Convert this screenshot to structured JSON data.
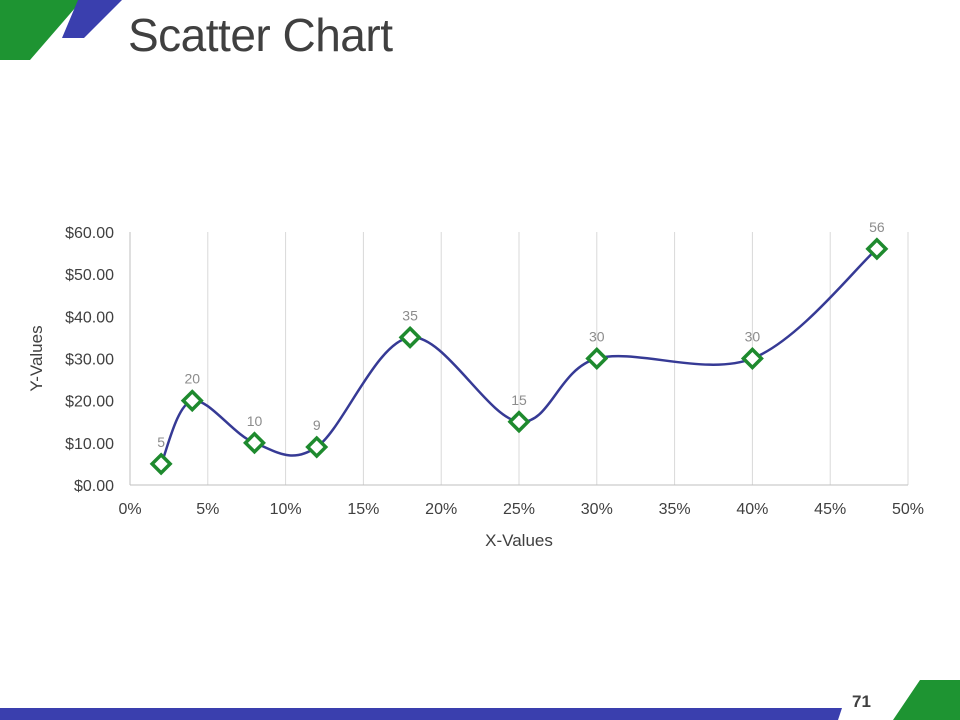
{
  "slide": {
    "title": "Scatter Chart",
    "page_number": "71"
  },
  "colors": {
    "green": "#1e9432",
    "blue": "#3a3fae",
    "line": "#363a95",
    "marker": "#1e8a2e",
    "grid": "#d9d9d9"
  },
  "chart_data": {
    "type": "scatter",
    "title": "",
    "xlabel": "X-Values",
    "ylabel": "Y-Values",
    "xlim": [
      0,
      0.5
    ],
    "ylim": [
      0,
      60
    ],
    "x_ticks": [
      0,
      0.05,
      0.1,
      0.15,
      0.2,
      0.25,
      0.3,
      0.35,
      0.4,
      0.45,
      0.5
    ],
    "x_tick_labels": [
      "0%",
      "5%",
      "10%",
      "15%",
      "20%",
      "25%",
      "30%",
      "35%",
      "40%",
      "45%",
      "50%"
    ],
    "y_ticks": [
      0,
      10,
      20,
      30,
      40,
      50,
      60
    ],
    "y_tick_labels": [
      "$0.00",
      "$10.00",
      "$20.00",
      "$30.00",
      "$40.00",
      "$50.00",
      "$60.00"
    ],
    "grid": "vertical",
    "smooth_line": true,
    "marker": "diamond",
    "series": [
      {
        "x": [
          0.02,
          0.04,
          0.08,
          0.12,
          0.18,
          0.25,
          0.3,
          0.4,
          0.48
        ],
        "y": [
          5,
          20,
          10,
          9,
          35,
          15,
          30,
          30,
          56
        ],
        "labels": [
          "5",
          "20",
          "10",
          "9",
          "35",
          "15",
          "30",
          "30",
          "56"
        ]
      }
    ]
  }
}
